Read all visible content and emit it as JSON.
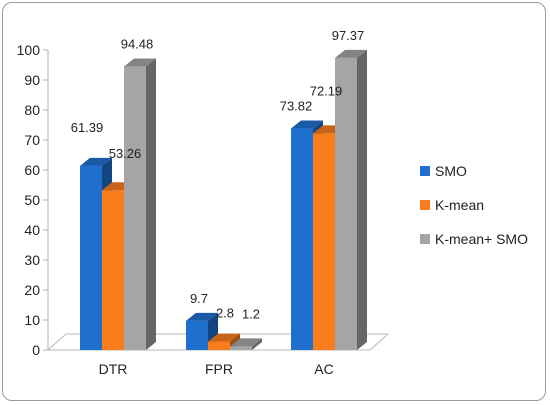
{
  "chart_data": {
    "type": "bar",
    "categories": [
      "DTR",
      "FPR",
      "AC"
    ],
    "series": [
      {
        "name": "SMO",
        "values": [
          61.39,
          9.7,
          73.82
        ],
        "color": "#1f6fcf"
      },
      {
        "name": "K-mean",
        "values": [
          53.26,
          2.8,
          72.19
        ],
        "color": "#f97d1d"
      },
      {
        "name": "K-mean+ SMO",
        "values": [
          94.48,
          1.2,
          97.37
        ],
        "color": "#a5a5a5"
      }
    ],
    "data_labels": [
      [
        "61.39",
        "9.7",
        "73.82"
      ],
      [
        "53.26",
        "2.8",
        "72.19"
      ],
      [
        "94.48",
        "1.2",
        "97.37"
      ]
    ],
    "ylim": [
      0,
      100
    ],
    "yticks": [
      "0",
      "10",
      "20",
      "30",
      "40",
      "50",
      "60",
      "70",
      "80",
      "90",
      "100"
    ],
    "legend_position": "right",
    "grid": false,
    "style": "3d"
  }
}
